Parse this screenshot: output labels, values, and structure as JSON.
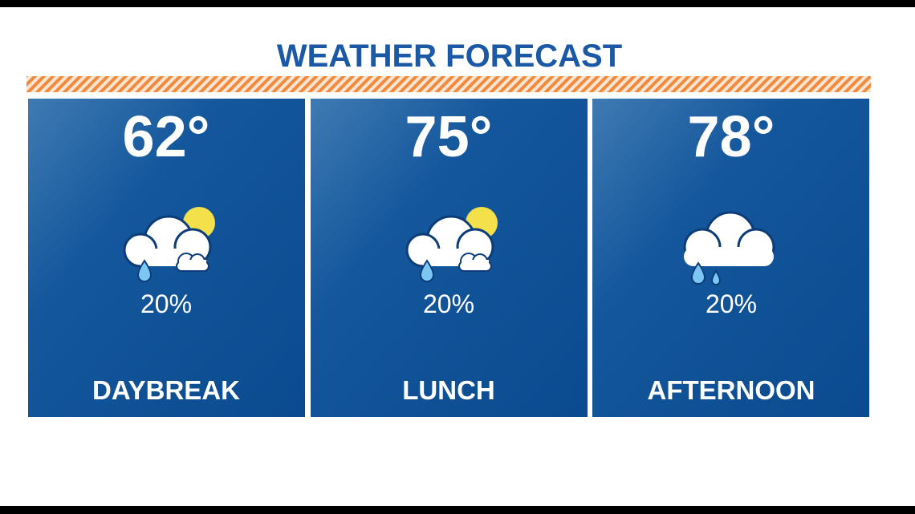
{
  "header": {
    "title": "WEATHER FORECAST"
  },
  "panels": [
    {
      "temperature": "62°",
      "precipitation": "20%",
      "label": "DAYBREAK"
    },
    {
      "temperature": "75°",
      "precipitation": "20%",
      "label": "LUNCH"
    },
    {
      "temperature": "78°",
      "precipitation": "20%",
      "label": "AFTERNOON"
    }
  ]
}
